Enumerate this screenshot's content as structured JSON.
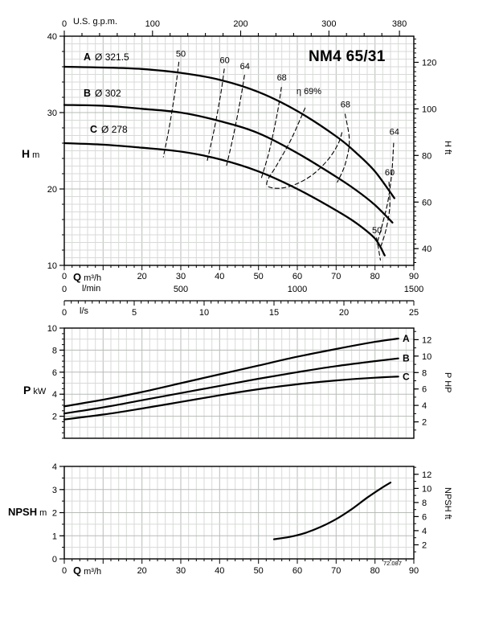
{
  "title": "NM4 65/31",
  "footnote": "72.087",
  "labels": {
    "us_gpm": "U.S. g.p.m.",
    "h_main": "H",
    "h_unit": "m",
    "h_ft": "H ft",
    "q_main": "Q",
    "q_unit": "m³/h",
    "lmin": "l/min",
    "ls": "l/s",
    "p_main": "P",
    "p_unit": "kW",
    "p_hp": "P HP",
    "npsh_main": "NPSH",
    "npsh_unit": "m",
    "npsh_ft": "NPSH ft"
  },
  "axes": {
    "top": {
      "label": "U.S. g.p.m.",
      "ticks": [
        0,
        100,
        200,
        300,
        380
      ],
      "to_m3h": 0.2271
    },
    "head_left": {
      "ticks": [
        10,
        20,
        30,
        40
      ]
    },
    "head_right": {
      "ticks": [
        40,
        60,
        80,
        100,
        120
      ],
      "ft_per_m": 3.2808
    },
    "q": {
      "ticks": [
        0,
        20,
        30,
        40,
        50,
        60,
        70,
        80,
        90
      ]
    },
    "lmin": {
      "ticks": [
        0,
        500,
        1000,
        1500
      ],
      "to_m3h": 0.06
    },
    "ls": {
      "ticks": [
        0,
        5,
        10,
        15,
        20,
        25
      ],
      "to_m3h": 3.6
    },
    "p_left": {
      "ticks": [
        2,
        4,
        6,
        8,
        10
      ]
    },
    "p_right": {
      "ticks": [
        2,
        4,
        6,
        8,
        10,
        12
      ],
      "hp_per_kw": 1.341
    },
    "npsh_left": {
      "ticks": [
        0,
        1,
        2,
        3,
        4
      ]
    },
    "npsh_right": {
      "ticks": [
        2,
        4,
        6,
        8,
        10,
        12
      ],
      "ft_per_m": 3.2808
    }
  },
  "chart_data": [
    {
      "id": "head-flow",
      "type": "line",
      "title": "NM4 65/31",
      "xlabel": "Q m³/h",
      "x2label": "U.S. g.p.m.",
      "ylabel": "H m",
      "y2label": "H ft",
      "xlim": [
        0,
        90
      ],
      "ylim": [
        10,
        40
      ],
      "grid": true,
      "legend_position": "on-curve-left",
      "x_ticks": [
        0,
        20,
        30,
        40,
        50,
        60,
        70,
        80,
        90
      ],
      "y_ticks": [
        10,
        20,
        30,
        40
      ],
      "series": [
        {
          "name": "A",
          "impeller": "Ø 321.5",
          "points": [
            [
              0,
              36
            ],
            [
              10,
              35.9
            ],
            [
              20,
              35.7
            ],
            [
              30,
              35.2
            ],
            [
              40,
              34.3
            ],
            [
              50,
              32.7
            ],
            [
              60,
              30.2
            ],
            [
              70,
              26.9
            ],
            [
              75,
              24.8
            ],
            [
              80,
              22.3
            ],
            [
              85,
              18.8
            ]
          ]
        },
        {
          "name": "B",
          "impeller": "Ø 302",
          "points": [
            [
              0,
              31
            ],
            [
              10,
              30.9
            ],
            [
              20,
              30.5
            ],
            [
              30,
              30
            ],
            [
              40,
              28.9
            ],
            [
              50,
              27.3
            ],
            [
              60,
              24.7
            ],
            [
              70,
              21.6
            ],
            [
              75,
              19.9
            ],
            [
              80,
              17.9
            ],
            [
              84.5,
              15.6
            ]
          ]
        },
        {
          "name": "C",
          "impeller": "Ø 278",
          "points": [
            [
              0,
              26
            ],
            [
              10,
              25.8
            ],
            [
              20,
              25.4
            ],
            [
              30,
              24.9
            ],
            [
              40,
              23.9
            ],
            [
              50,
              22.3
            ],
            [
              60,
              20
            ],
            [
              70,
              17.2
            ],
            [
              75,
              15.6
            ],
            [
              80,
              13.5
            ],
            [
              82.5,
              11.3
            ]
          ]
        }
      ],
      "efficiency_contours": [
        {
          "label": "50",
          "label_at": [
            30,
            37.3
          ],
          "points": [
            [
              29.5,
              36.6
            ],
            [
              28.6,
              33
            ],
            [
              27,
              28
            ],
            [
              25.5,
              24.2
            ]
          ]
        },
        {
          "label": "60",
          "label_at": [
            41.3,
            36.5
          ],
          "points": [
            [
              41.2,
              35.7
            ],
            [
              40.3,
              32.5
            ],
            [
              38.6,
              27.8
            ],
            [
              36.8,
              23.7
            ]
          ]
        },
        {
          "label": "64",
          "label_at": [
            46.5,
            35.7
          ],
          "points": [
            [
              46.4,
              34.9
            ],
            [
              45.4,
              31.8
            ],
            [
              43.6,
              27.1
            ],
            [
              41.8,
              23.1
            ]
          ]
        },
        {
          "label": "68",
          "label_at": [
            56,
            34.2
          ],
          "points": [
            [
              55.9,
              33.3
            ],
            [
              54.8,
              29.8
            ],
            [
              52.8,
              25
            ],
            [
              50.8,
              21.5
            ]
          ]
        },
        {
          "label": "η 69%",
          "label_at": [
            63,
            32.4
          ],
          "points": [
            [
              62,
              30.6
            ],
            [
              58.5,
              26.6
            ],
            [
              54.8,
              23.2
            ],
            [
              52.3,
              21.1
            ],
            [
              52.6,
              20.3
            ],
            [
              55.5,
              20.1
            ],
            [
              59.5,
              20.6
            ],
            [
              64,
              21.9
            ],
            [
              68,
              23.9
            ],
            [
              70.5,
              25.9
            ],
            [
              71.5,
              27.4
            ]
          ]
        },
        {
          "label": "68",
          "label_at": [
            72.4,
            30.7
          ],
          "points": [
            [
              72.3,
              29.8
            ],
            [
              73.4,
              26.3
            ],
            [
              72.3,
              23.2
            ],
            [
              70.3,
              20.9
            ]
          ]
        },
        {
          "label": "64",
          "label_at": [
            85,
            27.1
          ],
          "points": [
            [
              84.8,
              26
            ],
            [
              84.3,
              22
            ],
            [
              83.3,
              18.3
            ],
            [
              81.8,
              15.2
            ],
            [
              80.5,
              12.8
            ]
          ]
        },
        {
          "label": "60",
          "label_at": [
            83.8,
            21.8
          ],
          "points": [
            [
              83.6,
              20.9
            ],
            [
              83.8,
              17.6
            ],
            [
              82.8,
              14.6
            ],
            [
              81.3,
              12.2
            ]
          ]
        },
        {
          "label": "50",
          "label_at": [
            80.5,
            14.2
          ],
          "points": [
            [
              80.4,
              13.6
            ],
            [
              80.9,
              12.2
            ],
            [
              81.4,
              10.7
            ]
          ]
        }
      ]
    },
    {
      "id": "power",
      "type": "line",
      "xlabel": "Q m³/h",
      "ylabel": "P kW",
      "y2label": "P HP",
      "xlim": [
        0,
        90
      ],
      "ylim": [
        0,
        10
      ],
      "grid": true,
      "y_ticks": [
        2,
        4,
        6,
        8,
        10
      ],
      "series": [
        {
          "name": "A",
          "points": [
            [
              0,
              2.9
            ],
            [
              10,
              3.5
            ],
            [
              20,
              4.2
            ],
            [
              30,
              5
            ],
            [
              40,
              5.8
            ],
            [
              50,
              6.6
            ],
            [
              60,
              7.4
            ],
            [
              70,
              8.1
            ],
            [
              80,
              8.75
            ],
            [
              86,
              9.05
            ]
          ]
        },
        {
          "name": "B",
          "points": [
            [
              0,
              2.25
            ],
            [
              10,
              2.8
            ],
            [
              20,
              3.45
            ],
            [
              30,
              4.1
            ],
            [
              40,
              4.75
            ],
            [
              50,
              5.4
            ],
            [
              60,
              6
            ],
            [
              70,
              6.55
            ],
            [
              80,
              7
            ],
            [
              86,
              7.25
            ]
          ]
        },
        {
          "name": "C",
          "points": [
            [
              0,
              1.7
            ],
            [
              10,
              2.15
            ],
            [
              20,
              2.7
            ],
            [
              30,
              3.3
            ],
            [
              40,
              3.9
            ],
            [
              50,
              4.45
            ],
            [
              60,
              4.9
            ],
            [
              70,
              5.25
            ],
            [
              80,
              5.5
            ],
            [
              86,
              5.6
            ]
          ]
        }
      ]
    },
    {
      "id": "npsh",
      "type": "line",
      "xlabel": "Q m³/h",
      "ylabel": "NPSH m",
      "y2label": "NPSH ft",
      "xlim": [
        0,
        90
      ],
      "ylim": [
        0,
        4
      ],
      "grid": true,
      "x_ticks": [
        0,
        20,
        30,
        40,
        50,
        60,
        70,
        80,
        90
      ],
      "y_ticks": [
        0,
        1,
        2,
        3,
        4
      ],
      "series": [
        {
          "name": "NPSH",
          "points": [
            [
              54,
              0.85
            ],
            [
              58,
              0.95
            ],
            [
              62,
              1.12
            ],
            [
              66,
              1.38
            ],
            [
              70,
              1.72
            ],
            [
              74,
              2.15
            ],
            [
              78,
              2.65
            ],
            [
              82,
              3.1
            ],
            [
              84,
              3.3
            ]
          ]
        }
      ]
    }
  ]
}
